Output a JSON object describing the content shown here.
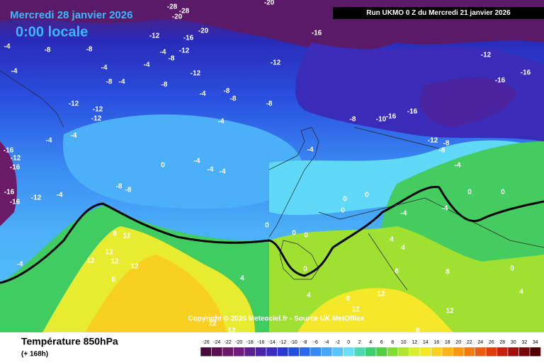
{
  "header": {
    "date": "Mercredi 28 janvier 2026",
    "time": "0:00 locale",
    "run": "Run UKMO 0 Z du Mercredi 21 janvier 2026",
    "copyright": "Copyright © 2026 Meteociel.fr - Source UK MetOffice"
  },
  "footer": {
    "title": "Température 850hPa",
    "lead": "(+ 168h)"
  },
  "scale": {
    "ticks": [
      -26,
      -24,
      -22,
      -20,
      -18,
      -16,
      -14,
      -12,
      -10,
      -8,
      -6,
      -4,
      -2,
      0,
      2,
      4,
      6,
      8,
      10,
      12,
      14,
      16,
      18,
      20,
      22,
      24,
      26,
      28,
      30,
      32,
      34
    ],
    "colors": [
      "#4a0a3e",
      "#5a1050",
      "#6a1a66",
      "#701c7e",
      "#5a2090",
      "#4a24a8",
      "#3a2cc0",
      "#2a38d0",
      "#2050e0",
      "#2a6aec",
      "#3688f4",
      "#46a6f8",
      "#56c4fa",
      "#64e0f8",
      "#50d8b0",
      "#3cd070",
      "#50d040",
      "#80dc30",
      "#b0e430",
      "#d8ec30",
      "#f4e828",
      "#f8d020",
      "#f8b418",
      "#f89810",
      "#f47c10",
      "#ec5c10",
      "#e03c10",
      "#c82010",
      "#a01010",
      "#780808",
      "#500000"
    ]
  },
  "labels": [
    -28,
    -20,
    -28,
    -20,
    -20,
    -16,
    -12,
    -16,
    -4,
    -8,
    -8,
    -4,
    -12,
    -8,
    -12,
    -12,
    -16,
    -16,
    -4,
    -4,
    -4,
    -8,
    -4,
    -12,
    -8,
    -4,
    -8,
    -8,
    -8,
    -12,
    -12,
    -12,
    -16,
    -10,
    -8,
    -16,
    -12,
    -8,
    -8,
    -4,
    -4,
    -4,
    -16,
    -12,
    -16,
    -12,
    -16,
    -16,
    -4,
    -4,
    -4,
    -4,
    0,
    -8,
    -8,
    -4,
    -4,
    0,
    0,
    0,
    0,
    0,
    0,
    0,
    0,
    0,
    -4,
    -4,
    4,
    4,
    8,
    12,
    12,
    12,
    12,
    12,
    8,
    -4,
    4,
    8,
    12,
    8,
    12,
    12,
    12,
    12,
    8,
    4,
    4,
    0,
    8
  ]
}
